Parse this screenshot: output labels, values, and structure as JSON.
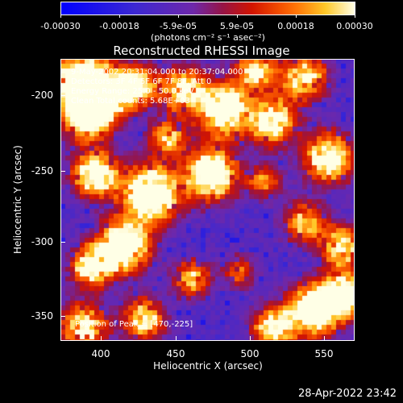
{
  "colorbar": {
    "labels": [
      "-0.00030",
      "-0.00018",
      "-5.9e-05",
      "5.9e-05",
      "0.00018",
      "0.00030"
    ],
    "units": "(photons cm⁻² s⁻¹ asec⁻²)"
  },
  "title": "Reconstructed RHESSI Image",
  "info": {
    "time": "9-May-2002 20:31:04.000 to 20:37:04.000",
    "detectors": "Detectors: 3F 4F 5F 6F 7F 8F, Att 0",
    "energy": "Energy Range: 25.0 - 50.0 keV",
    "clean": "Clean    Total counts: 5.68E+03"
  },
  "peak": "Position of Peak = [470,-225]",
  "axes": {
    "xlabel": "Heliocentric X (arcsec)",
    "ylabel": "Heliocentric Y (arcsec)",
    "xticks": [
      "400",
      "450",
      "500",
      "550"
    ],
    "yticks": [
      "-200",
      "-250",
      "-300",
      "-350"
    ]
  },
  "footer": "28-Apr-2022 23:42",
  "colors": {
    "low": "#1010ff",
    "mid": "#6a2bb0",
    "high": "#ffffa0"
  }
}
